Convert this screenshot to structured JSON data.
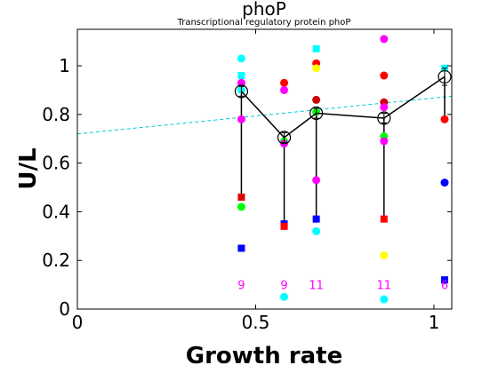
{
  "chart_data": {
    "type": "scatter",
    "title": "phoP",
    "subtitle": "Transcriptional regulatory protein phoP",
    "xlabel": "Growth rate",
    "ylabel": "U/L",
    "xlim": [
      0,
      1.05
    ],
    "ylim": [
      0,
      1.15
    ],
    "xticks": [
      0,
      0.5,
      1
    ],
    "xtick_labels": [
      "0",
      "0.5",
      "1"
    ],
    "yticks": [
      0,
      0.2,
      0.4,
      0.6,
      0.8,
      1
    ],
    "ytick_labels": [
      "0",
      "0.2",
      "0.4",
      "0.6",
      "0.8",
      "1"
    ],
    "grid": false,
    "points": [
      {
        "x": 0.46,
        "y": 1.03,
        "shape": "circle",
        "color": "#00ffff"
      },
      {
        "x": 0.46,
        "y": 0.96,
        "shape": "square",
        "color": "#00ffff"
      },
      {
        "x": 0.46,
        "y": 0.93,
        "shape": "circle",
        "color": "#ff00ff"
      },
      {
        "x": 0.46,
        "y": 0.9,
        "shape": "circle",
        "color": "#00ffff"
      },
      {
        "x": 0.46,
        "y": 0.78,
        "shape": "circle",
        "color": "#ff00ff"
      },
      {
        "x": 0.46,
        "y": 0.46,
        "shape": "square",
        "color": "#dd0000"
      },
      {
        "x": 0.46,
        "y": 0.42,
        "shape": "circle",
        "color": "#00ff00"
      },
      {
        "x": 0.46,
        "y": 0.25,
        "shape": "square",
        "color": "#0000ff"
      },
      {
        "x": 0.58,
        "y": 0.93,
        "shape": "circle",
        "color": "#ff0000"
      },
      {
        "x": 0.58,
        "y": 0.9,
        "shape": "circle",
        "color": "#ff00ff"
      },
      {
        "x": 0.58,
        "y": 0.69,
        "shape": "circle",
        "color": "#00ff00"
      },
      {
        "x": 0.58,
        "y": 0.68,
        "shape": "circle",
        "color": "#ff00ff"
      },
      {
        "x": 0.58,
        "y": 0.35,
        "shape": "square",
        "color": "#0000ff"
      },
      {
        "x": 0.58,
        "y": 0.34,
        "shape": "square",
        "color": "#ff0000"
      },
      {
        "x": 0.58,
        "y": 0.05,
        "shape": "circle",
        "color": "#00ffff"
      },
      {
        "x": 0.67,
        "y": 1.07,
        "shape": "square",
        "color": "#00ffff"
      },
      {
        "x": 0.67,
        "y": 1.01,
        "shape": "circle",
        "color": "#ff0000"
      },
      {
        "x": 0.67,
        "y": 0.99,
        "shape": "circle",
        "color": "#ffff00"
      },
      {
        "x": 0.67,
        "y": 0.86,
        "shape": "circle",
        "color": "#cc0000"
      },
      {
        "x": 0.67,
        "y": 0.81,
        "shape": "circle",
        "color": "#00ff00"
      },
      {
        "x": 0.67,
        "y": 0.53,
        "shape": "circle",
        "color": "#ff00ff"
      },
      {
        "x": 0.67,
        "y": 0.37,
        "shape": "square",
        "color": "#0000ff"
      },
      {
        "x": 0.67,
        "y": 0.32,
        "shape": "circle",
        "color": "#00ffff"
      },
      {
        "x": 0.86,
        "y": 1.11,
        "shape": "circle",
        "color": "#ff00ff"
      },
      {
        "x": 0.86,
        "y": 0.96,
        "shape": "circle",
        "color": "#ff0000"
      },
      {
        "x": 0.86,
        "y": 0.85,
        "shape": "circle",
        "color": "#cc0000"
      },
      {
        "x": 0.86,
        "y": 0.83,
        "shape": "circle",
        "color": "#ff00ff"
      },
      {
        "x": 0.86,
        "y": 0.71,
        "shape": "circle",
        "color": "#00ff00"
      },
      {
        "x": 0.86,
        "y": 0.69,
        "shape": "circle",
        "color": "#ff00ff"
      },
      {
        "x": 0.86,
        "y": 0.37,
        "shape": "square",
        "color": "#ff0000"
      },
      {
        "x": 0.86,
        "y": 0.22,
        "shape": "circle",
        "color": "#ffff00"
      },
      {
        "x": 0.86,
        "y": 0.04,
        "shape": "circle",
        "color": "#00ffff"
      },
      {
        "x": 1.03,
        "y": 0.99,
        "shape": "square",
        "color": "#00ffff"
      },
      {
        "x": 1.03,
        "y": 0.78,
        "shape": "circle",
        "color": "#ff0000"
      },
      {
        "x": 1.03,
        "y": 0.52,
        "shape": "circle",
        "color": "#0000ff"
      },
      {
        "x": 1.03,
        "y": 0.12,
        "shape": "square",
        "color": "#0000ff"
      }
    ],
    "mean_series": {
      "color": "#000000",
      "x": [
        0.46,
        0.58,
        0.67,
        0.86,
        1.03
      ],
      "y": [
        0.895,
        0.705,
        0.805,
        0.785,
        0.955
      ],
      "err": [
        0.02,
        0.02,
        0.02,
        0.02,
        0.035
      ]
    },
    "range_bars": [
      {
        "x": 0.46,
        "low": 0.46,
        "high": 0.895
      },
      {
        "x": 0.58,
        "low": 0.35,
        "high": 0.705
      },
      {
        "x": 0.67,
        "low": 0.37,
        "high": 0.805
      },
      {
        "x": 0.86,
        "low": 0.37,
        "high": 0.785
      },
      {
        "x": 1.03,
        "low": 0.78,
        "high": 0.955
      }
    ],
    "fit_line": {
      "color": "#00cccc",
      "x": [
        0,
        1.05
      ],
      "y": [
        0.72,
        0.875
      ]
    },
    "counts": [
      {
        "x": 0.46,
        "label": "9"
      },
      {
        "x": 0.58,
        "label": "9"
      },
      {
        "x": 0.67,
        "label": "11"
      },
      {
        "x": 0.86,
        "label": "11"
      },
      {
        "x": 1.03,
        "label": "6"
      }
    ],
    "counts_y": 0.1,
    "counts_color": "#ff00ff"
  }
}
